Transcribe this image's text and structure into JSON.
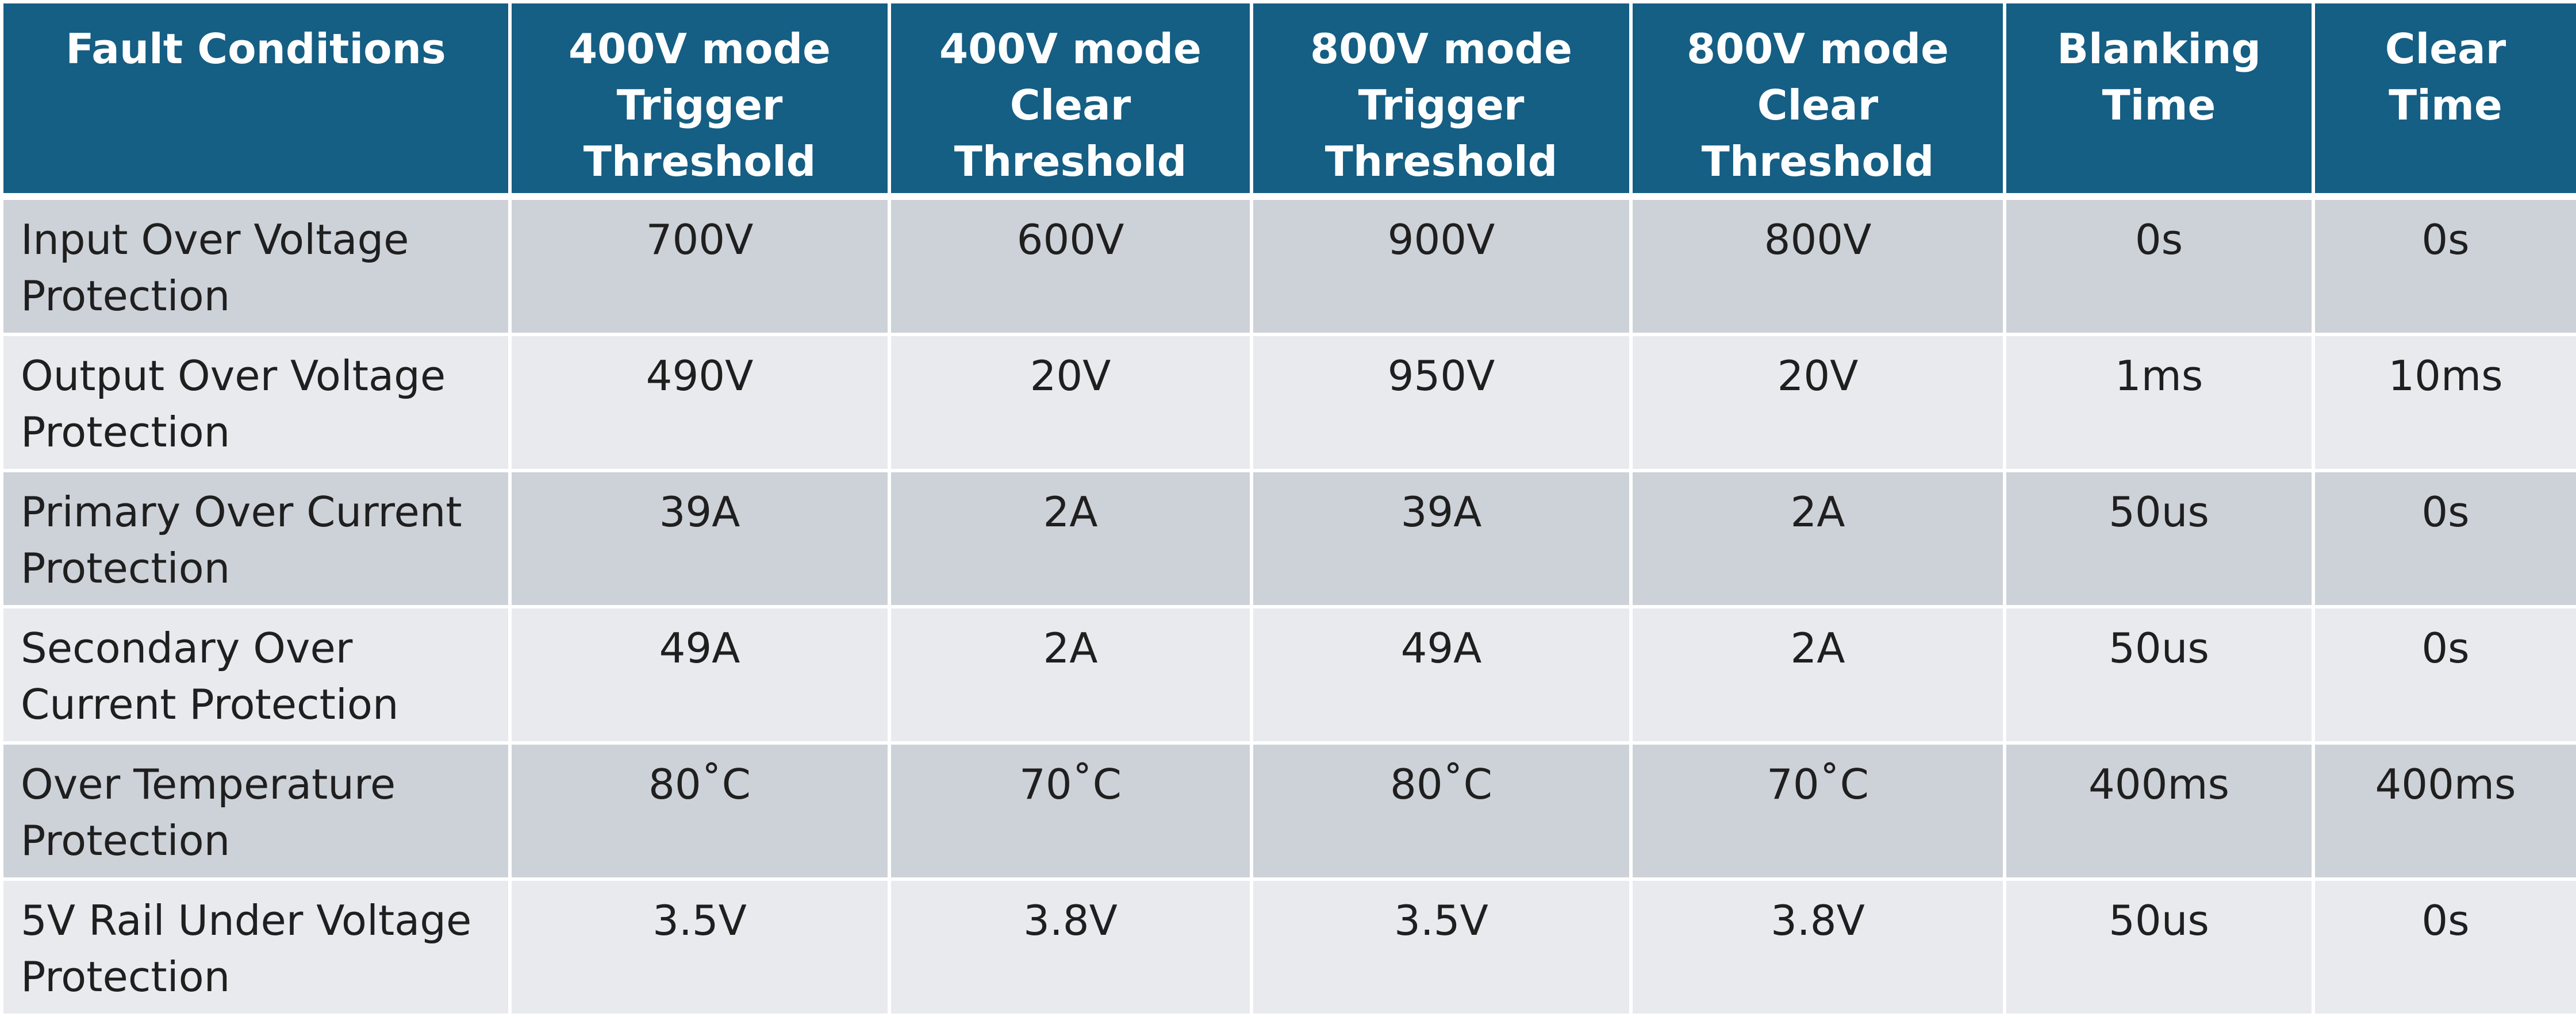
{
  "table": {
    "headers": [
      "Fault Conditions",
      "400V mode Trigger Threshold",
      "400V mode Clear Threshold",
      "800V mode Trigger Threshold",
      "800V mode Clear Threshold",
      "Blanking Time",
      "Clear Time"
    ],
    "rows": [
      [
        "Input Over Voltage Protection",
        "700V",
        "600V",
        "900V",
        "800V",
        "0s",
        "0s"
      ],
      [
        "Output Over Voltage Protection",
        "490V",
        "20V",
        "950V",
        "20V",
        "1ms",
        "10ms"
      ],
      [
        "Primary Over Current Protection",
        "39A",
        "2A",
        "39A",
        "2A",
        "50us",
        "0s"
      ],
      [
        "Secondary Over Current Protection",
        "49A",
        "2A",
        "49A",
        "2A",
        "50us",
        "0s"
      ],
      [
        "Over Temperature Protection",
        "80˚C",
        "70˚C",
        "80˚C",
        "70˚C",
        "400ms",
        "400ms"
      ],
      [
        "5V Rail Under Voltage Protection",
        "3.5V",
        "3.8V",
        "3.5V",
        "3.8V",
        "50us",
        "0s"
      ]
    ]
  },
  "colors": {
    "header_background": "#155e84",
    "header_text": "#ffffff",
    "row_odd_background": "#cdd1d8",
    "row_even_background": "#e8eaed",
    "body_text": "#1f1f1f"
  }
}
